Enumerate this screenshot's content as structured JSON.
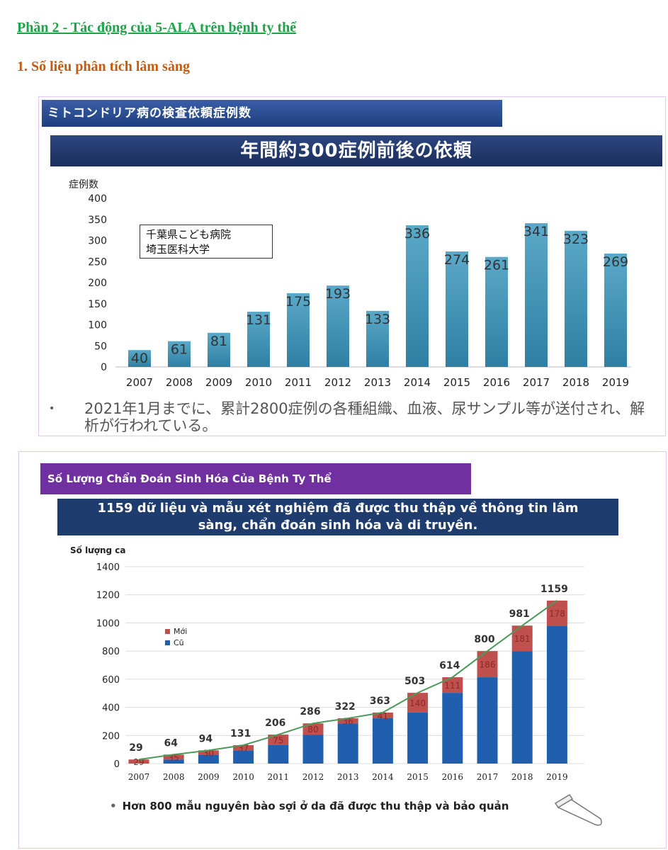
{
  "section_heading": "Phần 2 - Tác động của 5-ALA trên bệnh ty thể",
  "subheading": "1.  Số liệu phân tích lâm sàng",
  "panel1": {
    "banner": "ミトコンドリア病の検査依頼症例数",
    "headline": "年間約300症例前後の依頼",
    "infobox_line1": "千葉県こども病院",
    "infobox_line2": "埼玉医科大学",
    "note_bullet": "•",
    "note": "2021年1月までに、累計2800症例の各種組織、血液、尿サンプル等が送付され、解析が行われている。",
    "colors": {
      "bar_top": "#5aa9c9",
      "bar_bottom": "#2e7fa3",
      "banner": "#2d4680"
    }
  },
  "panel2": {
    "banner": "Số Lượng Chẩn Đoán Sinh Hóa Của Bệnh Ty Thể",
    "headline_line1": "1159 dữ liệu và mẫu xét nghiệm đã được thu thập về thông tin lâm",
    "headline_line2": "sàng, chẩn đoán sinh hóa và di truyền.",
    "note_bullet": "•",
    "note": "Hơn 800 mẫu nguyên bào sợi ở da đã được thu thập và bảo quản",
    "colors": {
      "new": "#c0504d",
      "old": "#1f5fae",
      "line": "#4a9a5a",
      "banner": "#7030a0"
    }
  },
  "chart_data": [
    {
      "type": "bar",
      "ylabel": "症例数",
      "categories": [
        "2007",
        "2008",
        "2009",
        "2010",
        "2011",
        "2012",
        "2013",
        "2014",
        "2015",
        "2016",
        "2017",
        "2018",
        "2019"
      ],
      "values": [
        40,
        61,
        81,
        131,
        175,
        193,
        133,
        336,
        274,
        261,
        341,
        323,
        269
      ],
      "ylim": [
        0,
        400
      ],
      "yticks": [
        0,
        50,
        100,
        150,
        200,
        250,
        300,
        350,
        400
      ],
      "grid": false
    },
    {
      "type": "bar",
      "stacked": true,
      "ylabel": "Số lượng ca",
      "categories": [
        "2007",
        "2008",
        "2009",
        "2010",
        "2011",
        "2012",
        "2013",
        "2014",
        "2015",
        "2016",
        "2017",
        "2018",
        "2019"
      ],
      "series": [
        {
          "name": "Cũ",
          "values": [
            0,
            29,
            64,
            94,
            131,
            206,
            286,
            322,
            363,
            503,
            614,
            800,
            981
          ]
        },
        {
          "name": "Mới",
          "values": [
            29,
            35,
            30,
            37,
            75,
            80,
            36,
            41,
            140,
            111,
            186,
            181,
            178
          ]
        }
      ],
      "totals": [
        29,
        64,
        94,
        131,
        206,
        286,
        322,
        363,
        503,
        614,
        800,
        981,
        1159
      ],
      "line": true,
      "ylim": [
        0,
        1400
      ],
      "yticks": [
        0,
        200,
        400,
        600,
        800,
        1000,
        1200,
        1400
      ],
      "grid": true,
      "legend": "top-left"
    }
  ]
}
